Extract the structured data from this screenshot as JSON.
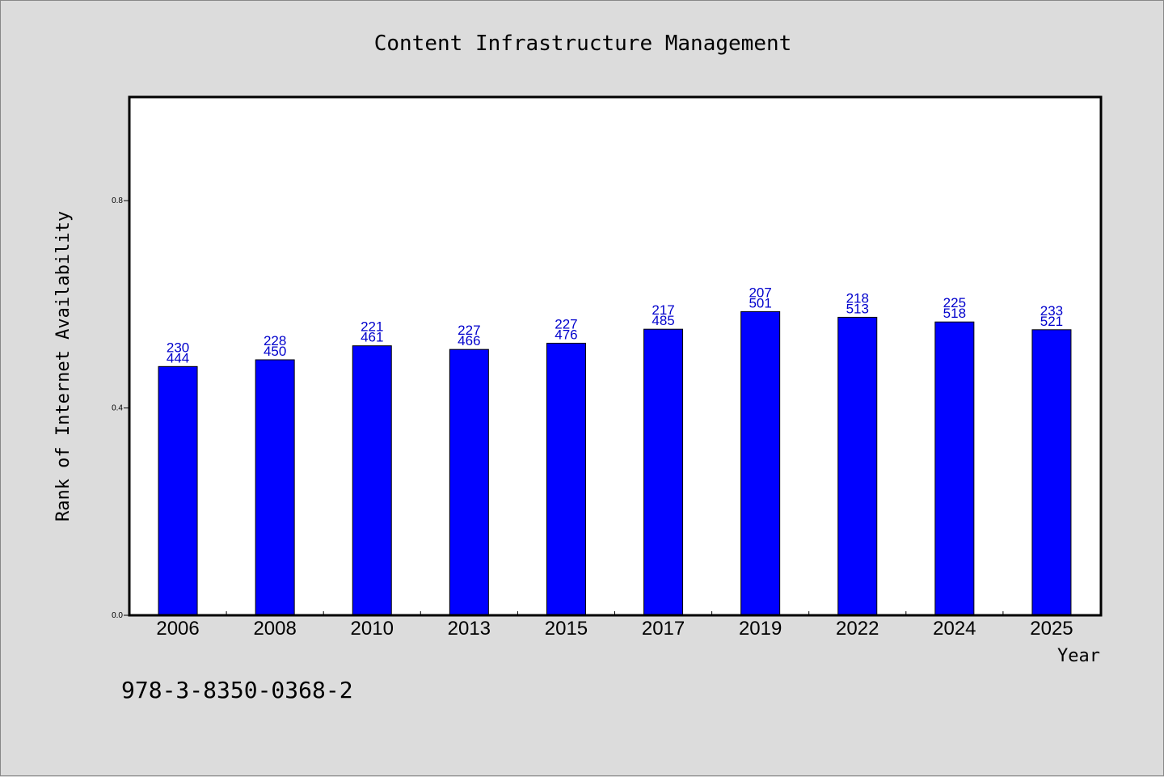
{
  "chart_data": {
    "type": "bar",
    "title": "Content Infrastructure Management",
    "xlabel": "Year",
    "ylabel": "Rank of Internet Availability",
    "categories": [
      "2006",
      "2008",
      "2010",
      "2013",
      "2015",
      "2017",
      "2019",
      "2022",
      "2024",
      "2025"
    ],
    "values": [
      0.48,
      0.493,
      0.52,
      0.513,
      0.525,
      0.552,
      0.586,
      0.575,
      0.566,
      0.551
    ],
    "labels_top": [
      "230",
      "228",
      "221",
      "227",
      "227",
      "217",
      "207",
      "218",
      "225",
      "233"
    ],
    "labels_bottom": [
      "444",
      "450",
      "461",
      "466",
      "476",
      "485",
      "501",
      "513",
      "518",
      "521"
    ],
    "ylim": [
      0,
      1.0
    ],
    "yticks": [
      0.0,
      0.4,
      0.8
    ],
    "ytick_labels": [
      "0.0",
      "0.4",
      "0.8"
    ],
    "grid": false,
    "bar_color": "#0000ff",
    "label_color": "#0000cc",
    "background": "#dcdcdc",
    "plot_background": "#ffffff"
  },
  "footer": {
    "isbn": "978-3-8350-0368-2"
  }
}
